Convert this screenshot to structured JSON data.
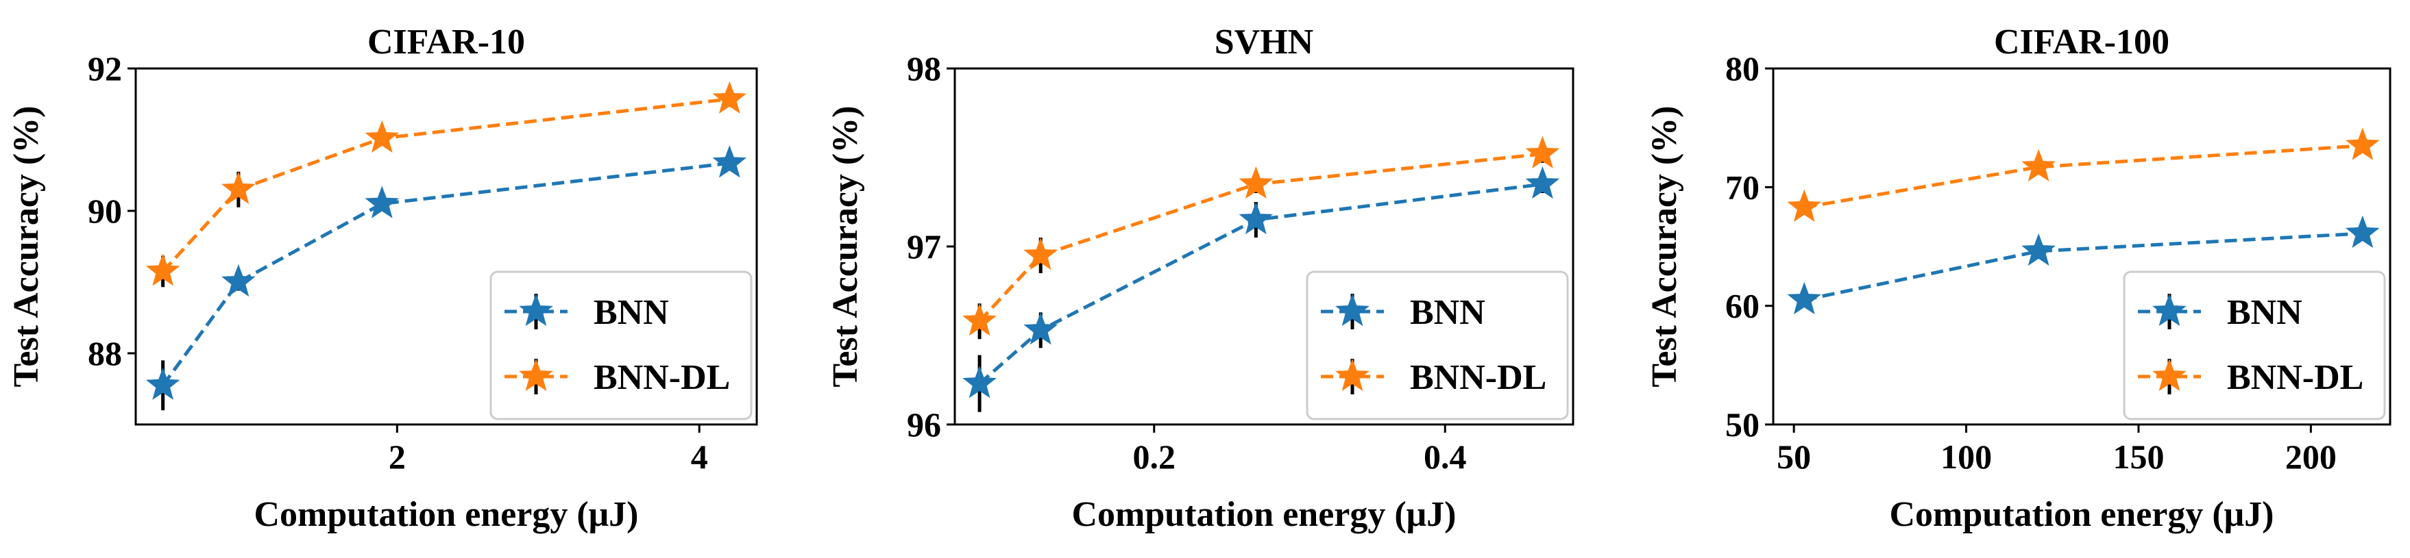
{
  "chart_data": [
    {
      "type": "line",
      "title": "CIFAR-10",
      "xlabel": "Computation energy (μJ)",
      "ylabel": "Test Accuracy (%)",
      "xlim": [
        0.27,
        4.38
      ],
      "ylim": [
        87.0,
        92.0
      ],
      "xticks": [
        2,
        4
      ],
      "yticks": [
        88,
        90,
        92
      ],
      "legend": "bottom-right",
      "grid": false,
      "series": [
        {
          "name": "BNN",
          "color": "#1f77b4",
          "x": [
            0.45,
            0.95,
            1.9,
            4.2
          ],
          "y": [
            87.55,
            89.0,
            90.1,
            90.67
          ],
          "err": [
            0.35,
            0.12,
            0.1,
            0.08
          ]
        },
        {
          "name": "BNN-DL",
          "color": "#ff7f0e",
          "x": [
            0.45,
            0.95,
            1.9,
            4.2
          ],
          "y": [
            89.15,
            90.3,
            91.02,
            91.57
          ],
          "err": [
            0.22,
            0.25,
            0.08,
            0.06
          ]
        }
      ]
    },
    {
      "type": "line",
      "title": "SVHN",
      "xlabel": "Computation energy (μJ)",
      "ylabel": "Test Accuracy (%)",
      "xlim": [
        0.063,
        0.488
      ],
      "ylim": [
        96.0,
        98.0
      ],
      "xticks": [
        0.2,
        0.4
      ],
      "yticks": [
        96,
        97,
        98
      ],
      "legend": "bottom-right",
      "grid": false,
      "series": [
        {
          "name": "BNN",
          "color": "#1f77b4",
          "x": [
            0.08,
            0.122,
            0.27,
            0.467
          ],
          "y": [
            96.23,
            96.53,
            97.15,
            97.35
          ],
          "err": [
            0.16,
            0.1,
            0.1,
            0.05
          ]
        },
        {
          "name": "BNN-DL",
          "color": "#ff7f0e",
          "x": [
            0.08,
            0.122,
            0.27,
            0.467
          ],
          "y": [
            96.58,
            96.95,
            97.35,
            97.52
          ],
          "err": [
            0.1,
            0.1,
            0.05,
            0.05
          ]
        }
      ]
    },
    {
      "type": "line",
      "title": "CIFAR-100",
      "xlabel": "Computation energy (μJ)",
      "ylabel": "Test Accuracy (%)",
      "xlim": [
        44.0,
        223.0
      ],
      "ylim": [
        50.0,
        80.0
      ],
      "xticks": [
        50,
        100,
        150,
        200
      ],
      "yticks": [
        50,
        60,
        70,
        80
      ],
      "legend": "bottom-right",
      "grid": false,
      "series": [
        {
          "name": "BNN",
          "color": "#1f77b4",
          "x": [
            53,
            121,
            215
          ],
          "y": [
            60.5,
            64.6,
            66.1
          ],
          "err": [
            0.5,
            0.5,
            0.4
          ]
        },
        {
          "name": "BNN-DL",
          "color": "#ff7f0e",
          "x": [
            53,
            121,
            215
          ],
          "y": [
            68.3,
            71.7,
            73.5
          ],
          "err": [
            0.5,
            0.5,
            0.4
          ]
        }
      ]
    }
  ]
}
